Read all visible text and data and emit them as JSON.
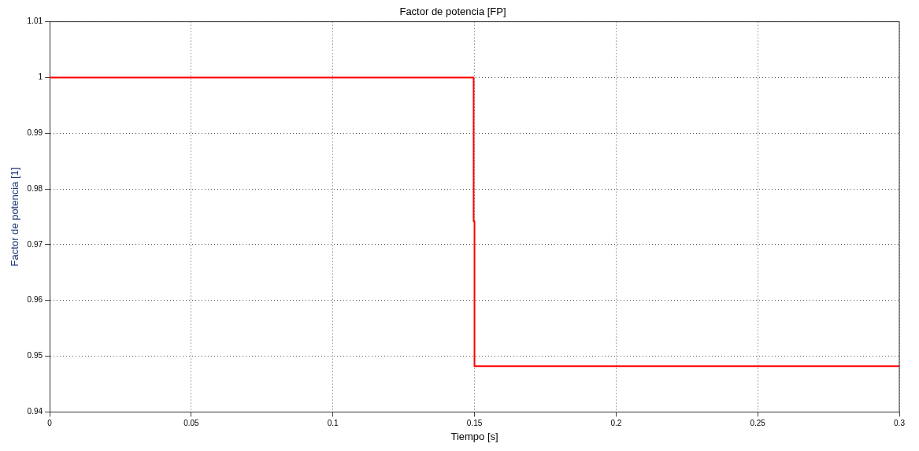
{
  "chart_data": {
    "type": "line",
    "title": "Factor de potencia [FP]",
    "xlabel": "Tiempo [s]",
    "ylabel": "Factor de potencia [1]",
    "x": [
      0,
      0.1497,
      0.1497,
      0.15,
      0.15,
      0.3
    ],
    "series": [
      {
        "color": "#ff0000",
        "values": [
          1,
          1,
          0.9742,
          0.9742,
          0.9482,
          0.9482
        ]
      }
    ],
    "xlim": [
      0,
      0.3
    ],
    "xticks": [
      0,
      0.05,
      0.1,
      0.15,
      0.2,
      0.25,
      0.3
    ],
    "ylim": [
      0.94,
      1.01
    ],
    "yticks": [
      0.94,
      0.95,
      0.96,
      0.97,
      0.98,
      0.99,
      1,
      1.01
    ],
    "grid": true,
    "legend": false,
    "marker": "none",
    "line_style": "solid"
  }
}
